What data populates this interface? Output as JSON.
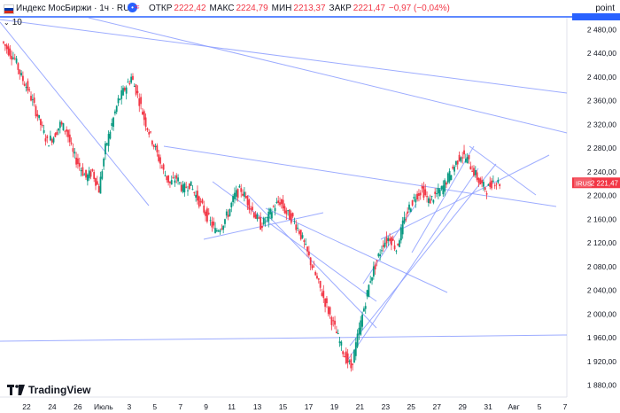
{
  "header": {
    "title": "Индекс МосБиржи · 1ч · RUS",
    "ohlc": [
      {
        "key": "ОТКР",
        "value": "2222,42"
      },
      {
        "key": "МАКС",
        "value": "2224,79"
      },
      {
        "key": "МИН",
        "value": "2213,37"
      },
      {
        "key": "ЗАКР",
        "value": "2221,47"
      },
      {
        "key": "",
        "value": "−0,97 (−0,04%)"
      }
    ],
    "indicator_count": "10",
    "axis_unit": "point"
  },
  "colors": {
    "up": "#089981",
    "down": "#f23645",
    "trendline": "#8c9eff",
    "price_tag": "#f23645",
    "accent": "#2962ff"
  },
  "logo_text": "TradingView",
  "chart_data": {
    "type": "candlestick",
    "ylim": [
      1860,
      2500
    ],
    "y_ticks": [
      "2 480,00",
      "2 440,00",
      "2 400,00",
      "2 360,00",
      "2 320,00",
      "2 280,00",
      "2 240,00",
      "2 200,00",
      "2 160,00",
      "2 120,00",
      "2 080,00",
      "2 040,00",
      "2 000,00",
      "1 960,00",
      "1 920,00",
      "1 880,00"
    ],
    "y_tick_values": [
      2480,
      2440,
      2400,
      2360,
      2320,
      2280,
      2240,
      2200,
      2160,
      2120,
      2080,
      2040,
      2000,
      1960,
      1920,
      1880
    ],
    "x_ticks": [
      "22",
      "24",
      "26",
      "Июль",
      "3",
      "5",
      "7",
      "9",
      "11",
      "13",
      "15",
      "17",
      "19",
      "21",
      "23",
      "25",
      "27",
      "29",
      "31",
      "Авг",
      "5",
      "7"
    ],
    "last_price": {
      "label": "IRUS",
      "value": 2221.47,
      "text": "2 221,47"
    },
    "price_path": [
      2460,
      2445,
      2430,
      2400,
      2380,
      2350,
      2320,
      2290,
      2300,
      2320,
      2310,
      2270,
      2250,
      2230,
      2240,
      2210,
      2280,
      2320,
      2360,
      2380,
      2400,
      2370,
      2330,
      2300,
      2270,
      2240,
      2220,
      2230,
      2210,
      2220,
      2200,
      2180,
      2160,
      2140,
      2150,
      2170,
      2200,
      2210,
      2190,
      2170,
      2150,
      2160,
      2180,
      2190,
      2170,
      2160,
      2140,
      2110,
      2080,
      2050,
      2020,
      1990,
      1960,
      1930,
      1910,
      1960,
      2010,
      2060,
      2090,
      2120,
      2130,
      2110,
      2150,
      2180,
      2200,
      2210,
      2190,
      2200,
      2210,
      2230,
      2250,
      2270,
      2260,
      2240,
      2220,
      2210,
      2225,
      2221.47
    ]
  }
}
